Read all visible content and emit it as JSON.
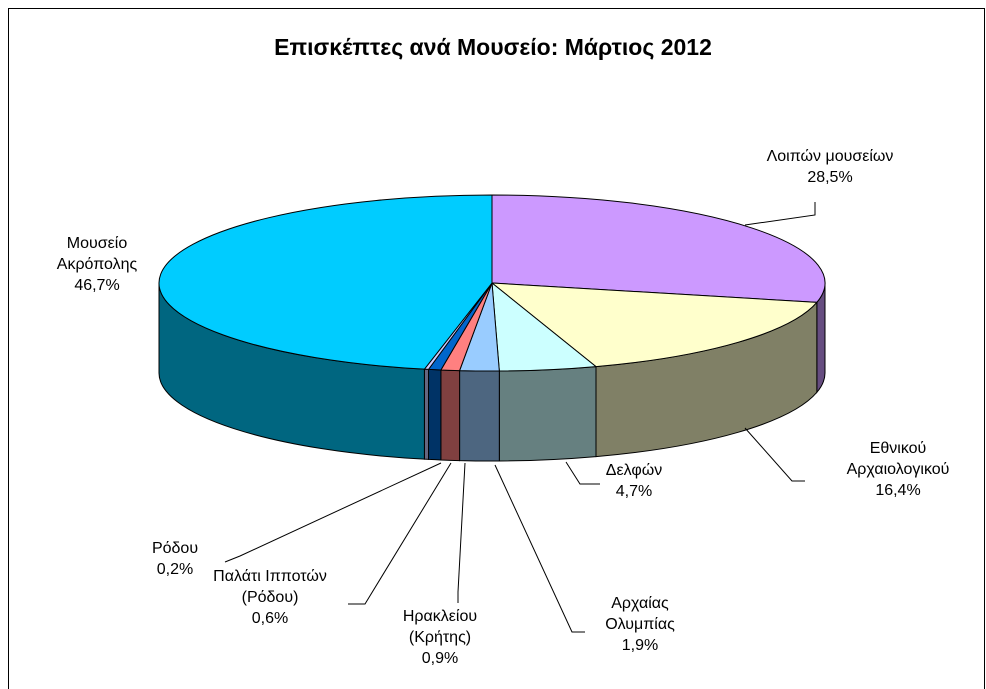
{
  "chart_data": {
    "type": "pie3d",
    "title": "Επισκέπτες ανά Μουσείο: Μάρτιος 2012",
    "categories": [
      "Λοιπών μουσείων",
      "Εθνικού\nΑρχαιολογικού",
      "Δελφών",
      "Αρχαίας\nΟλυμπίας",
      "Ηρακλείου\n(Κρήτης)",
      "Παλάτι Ιπποτών\n(Ρόδου)",
      "Ρόδου",
      "Μουσείο\nΑκρόπολης"
    ],
    "values": [
      28.5,
      16.4,
      4.7,
      1.9,
      0.9,
      0.6,
      0.2,
      46.7
    ],
    "value_labels": [
      "28,5%",
      "16,4%",
      "4,7%",
      "1,9%",
      "0,9%",
      "0,6%",
      "0,2%",
      "46,7%"
    ],
    "colors": [
      "#cc99ff",
      "#ffffcc",
      "#ccffff",
      "#99ccff",
      "#ff8080",
      "#0066cc",
      "#ccccff",
      "#00ccff"
    ]
  }
}
